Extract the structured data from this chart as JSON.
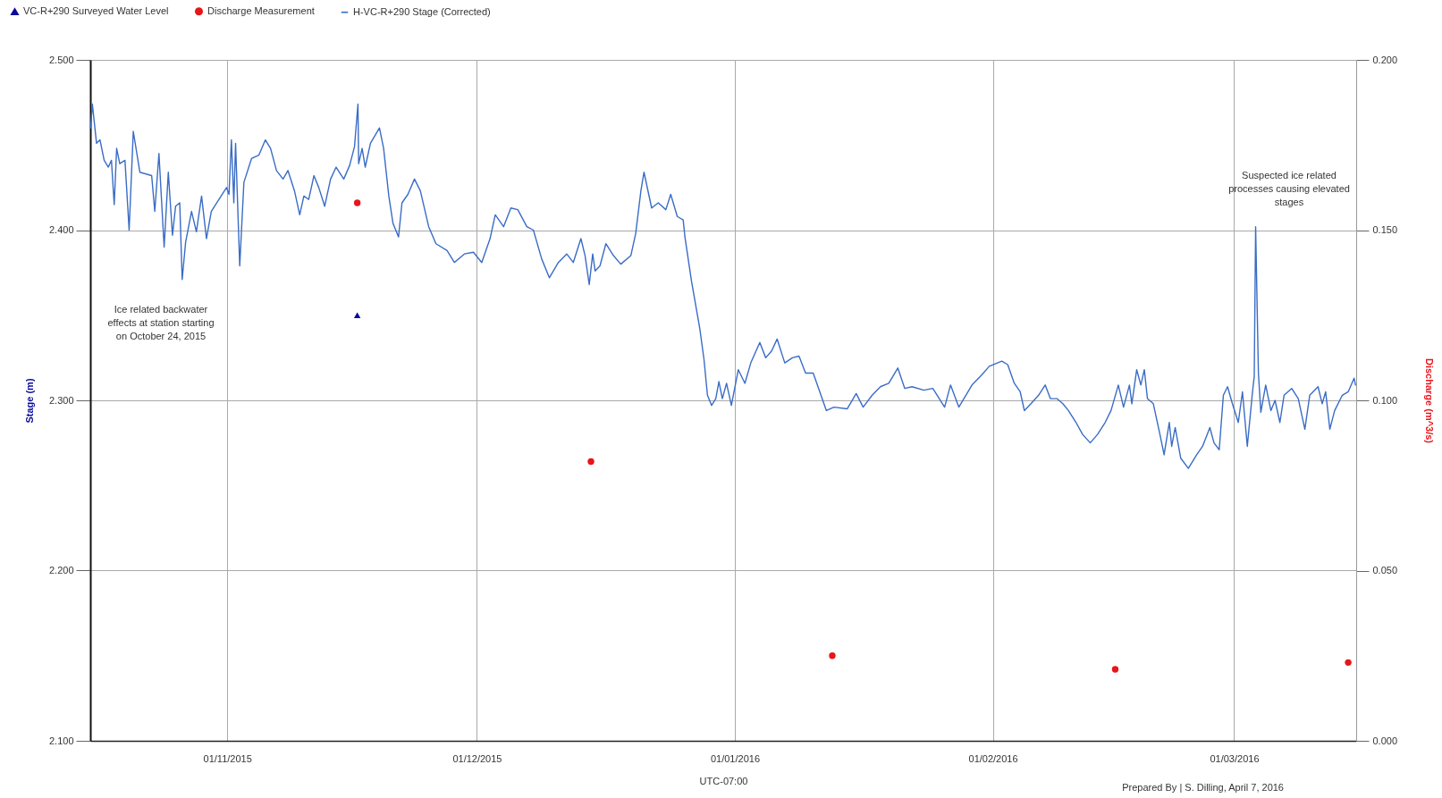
{
  "chart_data": {
    "type": "line",
    "xlabel": "UTC-07:00",
    "ylabel": "Stage (m)",
    "y2label": "Discharge (m^3/s)",
    "xlim": [
      "2015-10-15T13:00",
      "2016-03-15T16:00"
    ],
    "xticks": [
      {
        "value": "2015-11-01",
        "label": "01/11/2015"
      },
      {
        "value": "2015-12-01",
        "label": "01/12/2015"
      },
      {
        "value": "2016-01-01",
        "label": "01/01/2016"
      },
      {
        "value": "2016-02-01",
        "label": "01/02/2016"
      },
      {
        "value": "2016-03-01",
        "label": "01/03/2016"
      }
    ],
    "ylim": [
      2.1,
      2.5
    ],
    "yticks": [
      {
        "value": 2.1,
        "label": "2.100"
      },
      {
        "value": 2.2,
        "label": "2.200"
      },
      {
        "value": 2.3,
        "label": "2.300"
      },
      {
        "value": 2.4,
        "label": "2.400"
      },
      {
        "value": 2.5,
        "label": "2.500"
      }
    ],
    "y2lim": [
      0,
      0.2
    ],
    "y2ticks": [
      {
        "value": 0,
        "label": "0.000"
      },
      {
        "value": 0.05,
        "label": "0.050"
      },
      {
        "value": 0.1,
        "label": "0.100"
      },
      {
        "value": 0.15,
        "label": "0.150"
      },
      {
        "value": 0.2,
        "label": "0.200"
      }
    ],
    "grid": true,
    "legend": "top left",
    "series": [
      {
        "name": "VC-R+290 Surveyed Water Level",
        "type": "scatter",
        "marker": "triangle",
        "color": "#0b0b9a",
        "x": [
          "2015-11-16T15:00"
        ],
        "values": [
          2.35
        ]
      },
      {
        "name": "Discharge Measurement",
        "type": "scatter",
        "marker": "circle",
        "axis": "y2",
        "color": "#e8151b",
        "x": [
          "2015-11-16T15:00",
          "2015-12-14T17:00",
          "2016-01-12T17:00",
          "2016-02-15T17:00",
          "2016-03-14T17:00"
        ],
        "values": [
          0.158,
          0.082,
          0.025,
          0.021,
          0.023
        ]
      },
      {
        "name": "H-VC-R+290 Stage (Corrected)",
        "color": "#3a6cc6",
        "x": [
          "2015-10-15T14:00",
          "2015-10-15T19:00",
          "2015-10-16T07:00",
          "2015-10-16T17:00",
          "2015-10-17T05:00",
          "2015-10-17T17:00",
          "2015-10-18T02:00",
          "2015-10-18T10:00",
          "2015-10-18T17:00",
          "2015-10-19T02:00",
          "2015-10-19T17:00",
          "2015-10-20T05:00",
          "2015-10-20T17:00",
          "2015-10-21T12:00",
          "2015-10-22T22:00",
          "2015-10-23T07:00",
          "2015-10-23T19:00",
          "2015-10-24T10:00",
          "2015-10-24T22:00",
          "2015-10-25T10:00",
          "2015-10-25T19:00",
          "2015-10-26T07:00",
          "2015-10-26T14:00",
          "2015-10-27T00:00",
          "2015-10-27T17:00",
          "2015-10-28T07:00",
          "2015-10-28T22:00",
          "2015-10-29T12:00",
          "2015-10-30T02:00",
          "2015-10-31T00:00",
          "2015-10-31T22:00",
          "2015-11-01T05:00",
          "2015-11-01T12:00",
          "2015-11-01T19:00",
          "2015-11-02T00:00",
          "2015-11-02T12:00",
          "2015-11-03T00:00",
          "2015-11-03T22:00",
          "2015-11-04T19:00",
          "2015-11-05T14:00",
          "2015-11-06T05:00",
          "2015-11-06T22:00",
          "2015-11-07T17:00",
          "2015-11-08T07:00",
          "2015-11-09T02:00",
          "2015-11-09T17:00",
          "2015-11-10T05:00",
          "2015-11-10T19:00",
          "2015-11-11T10:00",
          "2015-11-12T00:00",
          "2015-11-12T17:00",
          "2015-11-13T10:00",
          "2015-11-14T02:00",
          "2015-11-15T00:00",
          "2015-11-15T17:00",
          "2015-11-16T07:00",
          "2015-11-16T17:00",
          "2015-11-16T19:00",
          "2015-11-17T05:00",
          "2015-11-17T14:00",
          "2015-11-18T05:00",
          "2015-11-19T07:00",
          "2015-11-19T19:00",
          "2015-11-20T10:00",
          "2015-11-20T22:00",
          "2015-11-21T14:00",
          "2015-11-22T00:00",
          "2015-11-22T17:00",
          "2015-11-23T12:00",
          "2015-11-24T05:00",
          "2015-11-25T05:00",
          "2015-11-26T02:00",
          "2015-11-27T10:00",
          "2015-11-28T07:00",
          "2015-11-29T12:00",
          "2015-11-30T14:00",
          "2015-12-01T14:00",
          "2015-12-02T14:00",
          "2015-12-03T05:00",
          "2015-12-04T05:00",
          "2015-12-05T02:00",
          "2015-12-05T22:00",
          "2015-12-07T00:00",
          "2015-12-07T19:00",
          "2015-12-08T19:00",
          "2015-12-09T17:00",
          "2015-12-10T19:00",
          "2015-12-11T19:00",
          "2015-12-12T14:00",
          "2015-12-13T12:00",
          "2015-12-14T00:00",
          "2015-12-14T12:00",
          "2015-12-14T22:00",
          "2015-12-15T05:00",
          "2015-12-15T19:00",
          "2015-12-16T12:00",
          "2015-12-17T10:00",
          "2015-12-18T07:00",
          "2015-12-19T12:00",
          "2015-12-20T02:00",
          "2015-12-20T17:00",
          "2015-12-21T02:00",
          "2015-12-22T00:00",
          "2015-12-22T19:00",
          "2015-12-23T17:00",
          "2015-12-24T07:00",
          "2015-12-25T02:00",
          "2015-12-25T19:00",
          "2015-12-26T00:00",
          "2015-12-26T19:00",
          "2015-12-27T19:00",
          "2015-12-28T07:00",
          "2015-12-28T17:00",
          "2015-12-29T05:00",
          "2015-12-29T17:00",
          "2015-12-30T02:00",
          "2015-12-30T12:00",
          "2015-12-31T00:00",
          "2015-12-31T14:00",
          "2016-01-01T10:00",
          "2016-01-02T05:00",
          "2016-01-02T22:00",
          "2016-01-04T00:00",
          "2016-01-04T17:00",
          "2016-01-05T10:00",
          "2016-01-06T02:00",
          "2016-01-07T00:00",
          "2016-01-07T22:00",
          "2016-01-08T17:00",
          "2016-01-09T12:00",
          "2016-01-10T10:00",
          "2016-01-11T05:00",
          "2016-01-12T00:00",
          "2016-01-12T22:00",
          "2016-01-14T12:00",
          "2016-01-15T14:00",
          "2016-01-16T10:00",
          "2016-01-17T12:00",
          "2016-01-18T12:00",
          "2016-01-19T12:00",
          "2016-01-20T14:00",
          "2016-01-21T10:00",
          "2016-01-22T07:00",
          "2016-01-23T17:00",
          "2016-01-24T19:00",
          "2016-01-26T05:00",
          "2016-01-26T22:00",
          "2016-01-27T22:00",
          "2016-01-29T12:00",
          "2016-01-30T12:00",
          "2016-01-31T14:00",
          "2016-02-02T02:00",
          "2016-02-02T19:00",
          "2016-02-03T14:00",
          "2016-02-04T07:00",
          "2016-02-04T19:00",
          "2016-02-05T14:00",
          "2016-02-06T12:00",
          "2016-02-07T07:00",
          "2016-02-07T22:00",
          "2016-02-08T17:00",
          "2016-02-09T10:00",
          "2016-02-10T02:00",
          "2016-02-11T00:00",
          "2016-02-11T19:00",
          "2016-02-12T17:00",
          "2016-02-13T14:00",
          "2016-02-14T12:00",
          "2016-02-15T05:00",
          "2016-02-16T02:00",
          "2016-02-16T17:00",
          "2016-02-17T10:00",
          "2016-02-17T17:00",
          "2016-02-18T07:00",
          "2016-02-18T19:00",
          "2016-02-19T05:00",
          "2016-02-19T14:00",
          "2016-02-20T07:00",
          "2016-02-21T02:00",
          "2016-02-21T14:00",
          "2016-02-22T05:00",
          "2016-02-22T12:00",
          "2016-02-22T22:00",
          "2016-02-23T14:00",
          "2016-02-24T12:00",
          "2016-02-25T12:00",
          "2016-02-26T05:00",
          "2016-02-27T02:00",
          "2016-02-27T14:00",
          "2016-02-28T05:00",
          "2016-02-28T17:00",
          "2016-02-29T05:00",
          "2016-02-29T19:00",
          "2016-03-01T12:00",
          "2016-03-02T00:00",
          "2016-03-02T14:00",
          "2016-03-03T05:00",
          "2016-03-03T10:00",
          "2016-03-03T14:00",
          "2016-03-03T22:00",
          "2016-03-04T05:00",
          "2016-03-04T19:00",
          "2016-03-05T10:00",
          "2016-03-05T22:00",
          "2016-03-06T12:00",
          "2016-03-07T00:00",
          "2016-03-07T22:00",
          "2016-03-08T17:00",
          "2016-03-09T12:00",
          "2016-03-10T02:00",
          "2016-03-11T02:00",
          "2016-03-11T14:00",
          "2016-03-12T00:00",
          "2016-03-12T12:00",
          "2016-03-13T02:00",
          "2016-03-14T00:00",
          "2016-03-14T17:00",
          "2016-03-15T10:00",
          "2016-03-15T14:00"
        ],
        "values": [
          2.46,
          2.474,
          2.451,
          2.453,
          2.441,
          2.437,
          2.441,
          2.415,
          2.448,
          2.439,
          2.441,
          2.4,
          2.458,
          2.434,
          2.432,
          2.411,
          2.445,
          2.39,
          2.434,
          2.397,
          2.414,
          2.416,
          2.371,
          2.393,
          2.411,
          2.399,
          2.42,
          2.395,
          2.411,
          2.418,
          2.425,
          2.421,
          2.453,
          2.416,
          2.451,
          2.379,
          2.428,
          2.442,
          2.444,
          2.453,
          2.448,
          2.435,
          2.43,
          2.435,
          2.423,
          2.409,
          2.42,
          2.418,
          2.432,
          2.425,
          2.414,
          2.43,
          2.437,
          2.43,
          2.438,
          2.449,
          2.474,
          2.439,
          2.448,
          2.437,
          2.451,
          2.46,
          2.448,
          2.42,
          2.404,
          2.396,
          2.416,
          2.421,
          2.43,
          2.423,
          2.402,
          2.392,
          2.388,
          2.381,
          2.386,
          2.387,
          2.381,
          2.395,
          2.409,
          2.402,
          2.413,
          2.412,
          2.402,
          2.4,
          2.383,
          2.372,
          2.381,
          2.386,
          2.381,
          2.395,
          2.385,
          2.368,
          2.386,
          2.376,
          2.379,
          2.392,
          2.385,
          2.38,
          2.385,
          2.398,
          2.423,
          2.434,
          2.413,
          2.416,
          2.412,
          2.421,
          2.408,
          2.406,
          2.396,
          2.37,
          2.342,
          2.324,
          2.303,
          2.297,
          2.301,
          2.311,
          2.301,
          2.31,
          2.297,
          2.318,
          2.31,
          2.322,
          2.334,
          2.325,
          2.329,
          2.336,
          2.322,
          2.325,
          2.326,
          2.316,
          2.316,
          2.305,
          2.294,
          2.296,
          2.295,
          2.304,
          2.296,
          2.303,
          2.308,
          2.31,
          2.319,
          2.307,
          2.308,
          2.306,
          2.307,
          2.296,
          2.309,
          2.296,
          2.309,
          2.314,
          2.32,
          2.323,
          2.321,
          2.31,
          2.305,
          2.294,
          2.298,
          2.303,
          2.309,
          2.301,
          2.301,
          2.298,
          2.294,
          2.287,
          2.28,
          2.275,
          2.28,
          2.287,
          2.294,
          2.309,
          2.296,
          2.309,
          2.298,
          2.318,
          2.309,
          2.318,
          2.301,
          2.298,
          2.28,
          2.268,
          2.287,
          2.273,
          2.284,
          2.266,
          2.26,
          2.268,
          2.273,
          2.284,
          2.275,
          2.271,
          2.303,
          2.308,
          2.298,
          2.287,
          2.305,
          2.273,
          2.305,
          2.314,
          2.402,
          2.316,
          2.293,
          2.309,
          2.294,
          2.3,
          2.287,
          2.303,
          2.307,
          2.301,
          2.283,
          2.303,
          2.308,
          2.298,
          2.305,
          2.283,
          2.294,
          2.303,
          2.305,
          2.313,
          2.309
        ]
      }
    ],
    "annotations": [
      "Ice related backwater effects at station starting on October 24, 2015",
      "Suspected ice related processes causing elevated stages",
      "Prepared By | S. Dilling, April 7, 2016"
    ]
  }
}
